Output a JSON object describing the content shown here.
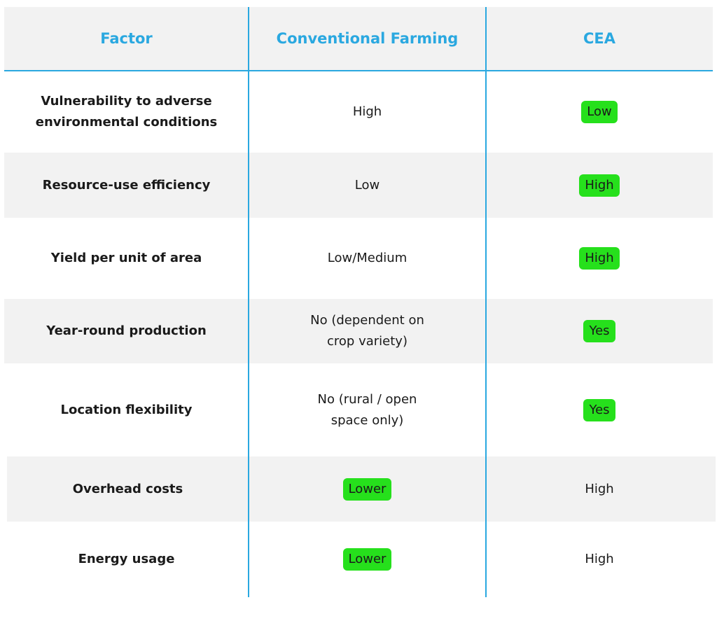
{
  "table": {
    "header": [
      "Factor",
      "Conventional Farming",
      "CEA"
    ],
    "rows": [
      [
        "Vulnerability to adverse environmental conditions",
        "High",
        "Low"
      ],
      [
        "Resource-use efficiency",
        "Low",
        "High"
      ],
      [
        "Yield per unit of area",
        "Low/Medium",
        "High"
      ],
      [
        "Year-round production",
        "No (dependent on crop variety)",
        "Yes"
      ],
      [
        "Location flexibility",
        "No (rural / open space only)",
        "Yes"
      ],
      [
        "Overhead costs",
        "Lower",
        "High"
      ],
      [
        "Energy usage",
        "Lower",
        "High"
      ]
    ]
  }
}
